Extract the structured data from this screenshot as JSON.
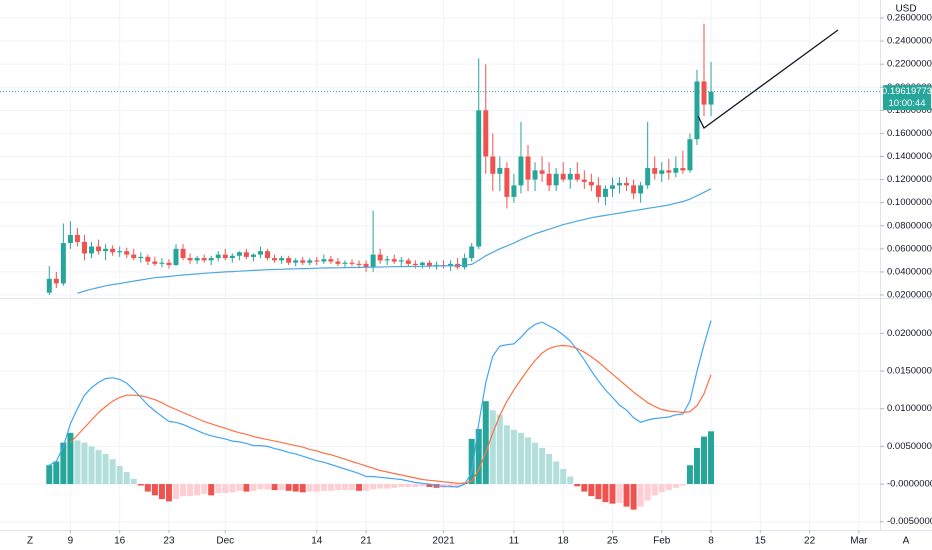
{
  "chart_data": [
    {
      "type": "candlestick",
      "up_color": "#26a69a",
      "down_color": "#ef5350",
      "xlim": [
        -7,
        118
      ],
      "ylim": [
        0.0174,
        0.2756
      ],
      "grid": true,
      "currency": "USD",
      "yticks": [
        {
          "value": 0.02,
          "label": "0.02000000"
        },
        {
          "value": 0.04,
          "label": "0.04000000"
        },
        {
          "value": 0.06,
          "label": "0.06000000"
        },
        {
          "value": 0.08,
          "label": "0.08000000"
        },
        {
          "value": 0.1,
          "label": "0.10000000"
        },
        {
          "value": 0.12,
          "label": "0.12000000"
        },
        {
          "value": 0.14,
          "label": "0.14000000"
        },
        {
          "value": 0.16,
          "label": "0.16000000"
        },
        {
          "value": 0.18,
          "label": "0.18000000"
        },
        {
          "value": 0.2,
          "label": "0.20000000"
        },
        {
          "value": 0.22,
          "label": "0.22000000"
        },
        {
          "value": 0.24,
          "label": "0.24000000"
        },
        {
          "value": 0.26,
          "label": "0.26000000"
        }
      ],
      "last_price": {
        "value": 0.19619773,
        "label": "0.19619773"
      },
      "countdown": "10:00:44",
      "candles": [
        [
          0.022,
          0.045,
          0.02,
          0.034
        ],
        [
          0.034,
          0.04,
          0.026,
          0.03
        ],
        [
          0.03,
          0.082,
          0.028,
          0.065
        ],
        [
          0.065,
          0.084,
          0.06,
          0.072
        ],
        [
          0.072,
          0.078,
          0.062,
          0.066
        ],
        [
          0.066,
          0.072,
          0.05,
          0.056
        ],
        [
          0.056,
          0.066,
          0.052,
          0.062
        ],
        [
          0.062,
          0.068,
          0.055,
          0.058
        ],
        [
          0.058,
          0.064,
          0.05,
          0.06
        ],
        [
          0.06,
          0.063,
          0.054,
          0.057
        ],
        [
          0.057,
          0.062,
          0.053,
          0.058
        ],
        [
          0.058,
          0.061,
          0.052,
          0.055
        ],
        [
          0.055,
          0.06,
          0.05,
          0.052
        ],
        [
          0.052,
          0.057,
          0.048,
          0.053
        ],
        [
          0.053,
          0.055,
          0.046,
          0.049
        ],
        [
          0.049,
          0.053,
          0.045,
          0.047
        ],
        [
          0.047,
          0.052,
          0.044,
          0.048
        ],
        [
          0.048,
          0.051,
          0.043,
          0.046
        ],
        [
          0.046,
          0.064,
          0.045,
          0.06
        ],
        [
          0.06,
          0.064,
          0.05,
          0.052
        ],
        [
          0.052,
          0.056,
          0.047,
          0.05
        ],
        [
          0.05,
          0.054,
          0.047,
          0.052
        ],
        [
          0.052,
          0.055,
          0.048,
          0.05
        ],
        [
          0.05,
          0.054,
          0.046,
          0.052
        ],
        [
          0.052,
          0.058,
          0.049,
          0.055
        ],
        [
          0.055,
          0.06,
          0.05,
          0.052
        ],
        [
          0.052,
          0.056,
          0.048,
          0.054
        ],
        [
          0.054,
          0.058,
          0.05,
          0.057
        ],
        [
          0.057,
          0.06,
          0.051,
          0.053
        ],
        [
          0.053,
          0.056,
          0.049,
          0.055
        ],
        [
          0.055,
          0.062,
          0.052,
          0.058
        ],
        [
          0.058,
          0.06,
          0.05,
          0.052
        ],
        [
          0.052,
          0.055,
          0.048,
          0.05
        ],
        [
          0.05,
          0.054,
          0.047,
          0.052
        ],
        [
          0.052,
          0.054,
          0.046,
          0.048
        ],
        [
          0.048,
          0.052,
          0.045,
          0.05
        ],
        [
          0.05,
          0.053,
          0.046,
          0.048
        ],
        [
          0.048,
          0.052,
          0.046,
          0.05
        ],
        [
          0.05,
          0.053,
          0.046,
          0.049
        ],
        [
          0.049,
          0.055,
          0.047,
          0.051
        ],
        [
          0.051,
          0.054,
          0.047,
          0.049
        ],
        [
          0.049,
          0.052,
          0.045,
          0.047
        ],
        [
          0.047,
          0.05,
          0.044,
          0.048
        ],
        [
          0.048,
          0.051,
          0.045,
          0.047
        ],
        [
          0.047,
          0.05,
          0.043,
          0.046
        ],
        [
          0.047,
          0.05,
          0.04,
          0.044
        ],
        [
          0.044,
          0.093,
          0.04,
          0.055
        ],
        [
          0.055,
          0.06,
          0.047,
          0.05
        ],
        [
          0.05,
          0.054,
          0.046,
          0.051
        ],
        [
          0.051,
          0.055,
          0.047,
          0.049
        ],
        [
          0.049,
          0.053,
          0.045,
          0.05
        ],
        [
          0.05,
          0.052,
          0.045,
          0.047
        ],
        [
          0.047,
          0.05,
          0.043,
          0.046
        ],
        [
          0.046,
          0.049,
          0.043,
          0.048
        ],
        [
          0.048,
          0.05,
          0.043,
          0.045
        ],
        [
          0.045,
          0.049,
          0.042,
          0.046
        ],
        [
          0.046,
          0.05,
          0.043,
          0.045
        ],
        [
          0.045,
          0.05,
          0.041,
          0.047
        ],
        [
          0.047,
          0.052,
          0.042,
          0.044
        ],
        [
          0.044,
          0.056,
          0.042,
          0.052
        ],
        [
          0.052,
          0.065,
          0.049,
          0.062
        ],
        [
          0.062,
          0.225,
          0.06,
          0.18
        ],
        [
          0.18,
          0.22,
          0.125,
          0.14
        ],
        [
          0.14,
          0.16,
          0.11,
          0.125
        ],
        [
          0.125,
          0.14,
          0.11,
          0.13
        ],
        [
          0.13,
          0.135,
          0.095,
          0.105
        ],
        [
          0.105,
          0.125,
          0.1,
          0.115
        ],
        [
          0.115,
          0.17,
          0.108,
          0.14
        ],
        [
          0.14,
          0.15,
          0.11,
          0.12
        ],
        [
          0.12,
          0.135,
          0.11,
          0.128
        ],
        [
          0.128,
          0.14,
          0.118,
          0.125
        ],
        [
          0.125,
          0.135,
          0.11,
          0.115
        ],
        [
          0.115,
          0.13,
          0.11,
          0.125
        ],
        [
          0.125,
          0.135,
          0.118,
          0.12
        ],
        [
          0.12,
          0.13,
          0.112,
          0.125
        ],
        [
          0.125,
          0.135,
          0.118,
          0.12
        ],
        [
          0.12,
          0.128,
          0.112,
          0.118
        ],
        [
          0.118,
          0.125,
          0.11,
          0.115
        ],
        [
          0.115,
          0.122,
          0.1,
          0.105
        ],
        [
          0.105,
          0.115,
          0.098,
          0.112
        ],
        [
          0.112,
          0.122,
          0.105,
          0.115
        ],
        [
          0.115,
          0.122,
          0.108,
          0.117
        ],
        [
          0.117,
          0.122,
          0.11,
          0.115
        ],
        [
          0.115,
          0.12,
          0.103,
          0.108
        ],
        [
          0.108,
          0.118,
          0.1,
          0.115
        ],
        [
          0.115,
          0.17,
          0.112,
          0.13
        ],
        [
          0.13,
          0.14,
          0.12,
          0.125
        ],
        [
          0.125,
          0.135,
          0.118,
          0.128
        ],
        [
          0.128,
          0.138,
          0.12,
          0.126
        ],
        [
          0.126,
          0.14,
          0.122,
          0.13
        ],
        [
          0.13,
          0.145,
          0.125,
          0.128
        ],
        [
          0.128,
          0.16,
          0.126,
          0.155
        ],
        [
          0.155,
          0.215,
          0.15,
          0.205
        ],
        [
          0.205,
          0.255,
          0.175,
          0.185
        ],
        [
          0.185,
          0.222,
          0.175,
          0.19619773
        ]
      ],
      "ma": {
        "color": "#4fa8e0",
        "values": [
          null,
          null,
          null,
          null,
          0.0215,
          0.0235,
          0.025,
          0.0265,
          0.028,
          0.029,
          0.03,
          0.031,
          0.032,
          0.033,
          0.034,
          0.035,
          0.0355,
          0.036,
          0.0367,
          0.0373,
          0.0378,
          0.0383,
          0.0388,
          0.0392,
          0.0396,
          0.04,
          0.0403,
          0.0406,
          0.041,
          0.0413,
          0.0416,
          0.0419,
          0.0421,
          0.0423,
          0.0425,
          0.0427,
          0.0429,
          0.043,
          0.0432,
          0.0434,
          0.0435,
          0.0436,
          0.0437,
          0.0438,
          0.0439,
          0.044,
          0.0441,
          0.0443,
          0.0444,
          0.0445,
          0.0446,
          0.0447,
          0.0448,
          0.0449,
          0.045,
          0.0451,
          0.0452,
          0.0453,
          0.0455,
          0.0458,
          0.0465,
          0.05,
          0.054,
          0.057,
          0.06,
          0.0625,
          0.065,
          0.068,
          0.0705,
          0.073,
          0.075,
          0.077,
          0.079,
          0.081,
          0.0825,
          0.084,
          0.0855,
          0.087,
          0.088,
          0.089,
          0.09,
          0.091,
          0.092,
          0.093,
          0.094,
          0.095,
          0.096,
          0.097,
          0.098,
          0.0995,
          0.101,
          0.103,
          0.106,
          0.109,
          0.112
        ]
      }
    },
    {
      "type": "macd",
      "xlim": [
        -7,
        118
      ],
      "ylim": [
        -0.0061,
        0.0247
      ],
      "grid": true,
      "yticks": [
        {
          "value": -0.005,
          "label": "-0.00500000"
        },
        {
          "value": 0,
          "label": "-0.00000000"
        },
        {
          "value": 0.005,
          "label": "0.00500000"
        },
        {
          "value": 0.01,
          "label": "0.01000000"
        },
        {
          "value": 0.015,
          "label": "0.01500000"
        },
        {
          "value": 0.02,
          "label": "0.02000000"
        }
      ],
      "xticks": [
        {
          "value": 3,
          "label": "9"
        },
        {
          "value": 10,
          "label": "16"
        },
        {
          "value": 17,
          "label": "23"
        },
        {
          "value": 25,
          "label": "Dec"
        },
        {
          "value": 38,
          "label": "14"
        },
        {
          "value": 45,
          "label": "21"
        },
        {
          "value": 56,
          "label": "2021"
        },
        {
          "value": 66,
          "label": "11"
        },
        {
          "value": 73,
          "label": "18"
        },
        {
          "value": 80,
          "label": "25"
        },
        {
          "value": 87,
          "label": "Feb"
        },
        {
          "value": 94,
          "label": "8"
        },
        {
          "value": 101,
          "label": "15"
        },
        {
          "value": 108,
          "label": "22"
        },
        {
          "value": 115,
          "label": "Mar"
        }
      ],
      "histogram": {
        "colors": {
          "rising_positive": "#26a69a",
          "falling_positive": "#b2dfdb",
          "falling_negative": "#ef5350",
          "rising_negative": "#ffcdd2"
        },
        "values": [
          0.0025,
          0.003,
          0.0055,
          0.0068,
          0.0058,
          0.0055,
          0.005,
          0.0045,
          0.004,
          0.0033,
          0.0024,
          0.0016,
          0.0007,
          -0.0002,
          -0.001,
          -0.0015,
          -0.002,
          -0.0023,
          -0.002,
          -0.0016,
          -0.0016,
          -0.0015,
          -0.0013,
          -0.0015,
          -0.0012,
          -0.0012,
          -0.0011,
          -0.0009,
          -0.001,
          -0.0009,
          -0.0007,
          -0.0007,
          -0.0008,
          -0.0008,
          -0.0009,
          -0.001,
          -0.0011,
          -0.001,
          -0.001,
          -0.0009,
          -0.0009,
          -0.0008,
          -0.0008,
          -0.0008,
          -0.0009,
          -0.0009,
          -0.0007,
          -0.0006,
          -0.0006,
          -0.0005,
          -0.0004,
          -0.0004,
          -0.0004,
          -0.0003,
          -0.0004,
          -0.0005,
          -0.0005,
          -0.0005,
          -0.0004,
          0.0002,
          0.006,
          0.0073,
          0.011,
          0.0098,
          0.0092,
          0.0078,
          0.0072,
          0.0068,
          0.0062,
          0.0055,
          0.0048,
          0.004,
          0.003,
          0.002,
          0.001,
          -0.0003,
          -0.001,
          -0.0016,
          -0.002,
          -0.0024,
          -0.0026,
          -0.0025,
          -0.003,
          -0.0034,
          -0.003,
          -0.0022,
          -0.0015,
          -0.0011,
          -0.0008,
          -0.0005,
          -0.0002,
          0.0025,
          0.0048,
          0.0063,
          0.007
        ]
      },
      "series": [
        {
          "color": "#42a5f5",
          "values": [
            0.0025,
            0.003,
            0.005,
            0.008,
            0.01,
            0.0118,
            0.0128,
            0.0135,
            0.014,
            0.0141,
            0.0139,
            0.0134,
            0.0125,
            0.0115,
            0.0105,
            0.0097,
            0.009,
            0.0083,
            0.0082,
            0.0079,
            0.0075,
            0.0071,
            0.0067,
            0.0064,
            0.0062,
            0.006,
            0.0057,
            0.0056,
            0.0054,
            0.0051,
            0.0051,
            0.005,
            0.0047,
            0.0045,
            0.0042,
            0.004,
            0.0037,
            0.0034,
            0.0031,
            0.0029,
            0.0026,
            0.0023,
            0.002,
            0.0017,
            0.0014,
            0.001,
            0.001,
            0.0009,
            0.0008,
            0.0007,
            0.0006,
            0.0004,
            0.0002,
            0.0001,
            0.0,
            -0.0002,
            -0.0003,
            -0.0003,
            -0.0004,
            0.0,
            0.0015,
            0.008,
            0.0135,
            0.017,
            0.0183,
            0.0185,
            0.0186,
            0.0195,
            0.0205,
            0.0212,
            0.0215,
            0.021,
            0.0205,
            0.0198,
            0.019,
            0.0178,
            0.0165,
            0.015,
            0.0137,
            0.0125,
            0.0115,
            0.0105,
            0.0098,
            0.0088,
            0.0082,
            0.0085,
            0.0087,
            0.0088,
            0.0089,
            0.0092,
            0.0093,
            0.011,
            0.015,
            0.0185,
            0.0217
          ]
        },
        {
          "color": "#ff7043",
          "values": [
            null,
            null,
            null,
            0.0055,
            0.0065,
            0.0075,
            0.0085,
            0.0095,
            0.0103,
            0.011,
            0.0115,
            0.0118,
            0.0118,
            0.0117,
            0.0115,
            0.0112,
            0.0108,
            0.0103,
            0.0099,
            0.0095,
            0.0091,
            0.0087,
            0.0083,
            0.008,
            0.0077,
            0.0074,
            0.0071,
            0.0068,
            0.0066,
            0.0063,
            0.0061,
            0.0059,
            0.0057,
            0.0055,
            0.0053,
            0.0051,
            0.0049,
            0.0046,
            0.0044,
            0.0041,
            0.0039,
            0.0036,
            0.0033,
            0.003,
            0.0027,
            0.0024,
            0.0021,
            0.0018,
            0.0016,
            0.0014,
            0.0012,
            0.001,
            0.0008,
            0.0006,
            0.0005,
            0.0004,
            0.0003,
            0.0002,
            0.0001,
            0.0001,
            0.0004,
            0.0019,
            0.0042,
            0.0068,
            0.0091,
            0.011,
            0.0125,
            0.0139,
            0.0152,
            0.0164,
            0.0174,
            0.018,
            0.0183,
            0.0184,
            0.0183,
            0.018,
            0.0175,
            0.0169,
            0.0162,
            0.0154,
            0.0146,
            0.0138,
            0.013,
            0.0122,
            0.0115,
            0.0108,
            0.0103,
            0.0099,
            0.0097,
            0.0096,
            0.0095,
            0.0096,
            0.0104,
            0.012,
            0.0145
          ]
        }
      ]
    }
  ],
  "ui": {
    "left_button": "Z",
    "right_button": "A"
  }
}
